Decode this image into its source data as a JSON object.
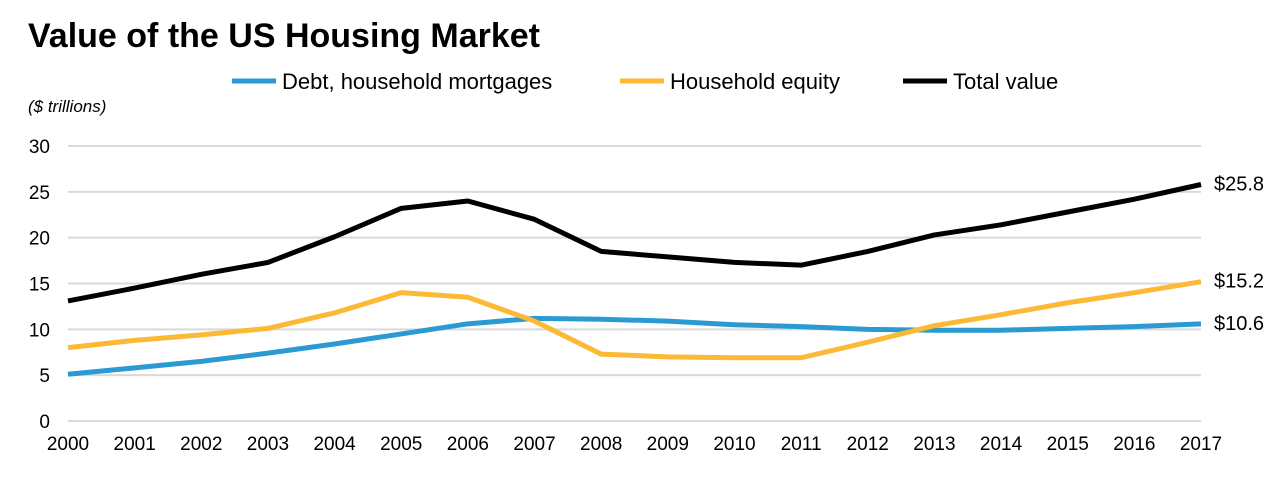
{
  "chart_data": {
    "type": "line",
    "title": "Value of the US Housing Market",
    "ylabel": "($ trillions)",
    "xlabel": "",
    "ylim": [
      0,
      30
    ],
    "yticks": [
      0,
      5,
      10,
      15,
      20,
      25,
      30
    ],
    "grid": true,
    "legend_placement": "top-center",
    "x": [
      "2000",
      "2001",
      "2002",
      "2003",
      "2004",
      "2005",
      "2006",
      "2007",
      "2008",
      "2009",
      "2010",
      "2011",
      "2012",
      "2013",
      "2014",
      "2015",
      "2016",
      "2017"
    ],
    "series": [
      {
        "name": "Debt, household mortgages",
        "color": "#2b9ad3",
        "end_label": "$10.6",
        "values": [
          5.1,
          5.8,
          6.5,
          7.4,
          8.4,
          9.5,
          10.6,
          11.2,
          11.1,
          10.9,
          10.5,
          10.3,
          10.0,
          9.9,
          9.9,
          10.1,
          10.3,
          10.6
        ]
      },
      {
        "name": "Household equity",
        "color": "#fbb935",
        "end_label": "$15.2",
        "values": [
          8.0,
          8.8,
          9.4,
          10.1,
          11.8,
          14.0,
          13.5,
          10.9,
          7.3,
          7.0,
          6.9,
          6.9,
          8.6,
          10.4,
          11.6,
          12.9,
          14.0,
          15.2
        ]
      },
      {
        "name": "Total value",
        "color": "#000000",
        "end_label": "$25.8",
        "values": [
          13.1,
          14.5,
          16.0,
          17.3,
          20.1,
          23.2,
          24.0,
          22.0,
          18.5,
          17.9,
          17.3,
          17.0,
          18.5,
          20.3,
          21.4,
          22.8,
          24.2,
          25.8
        ]
      }
    ]
  }
}
